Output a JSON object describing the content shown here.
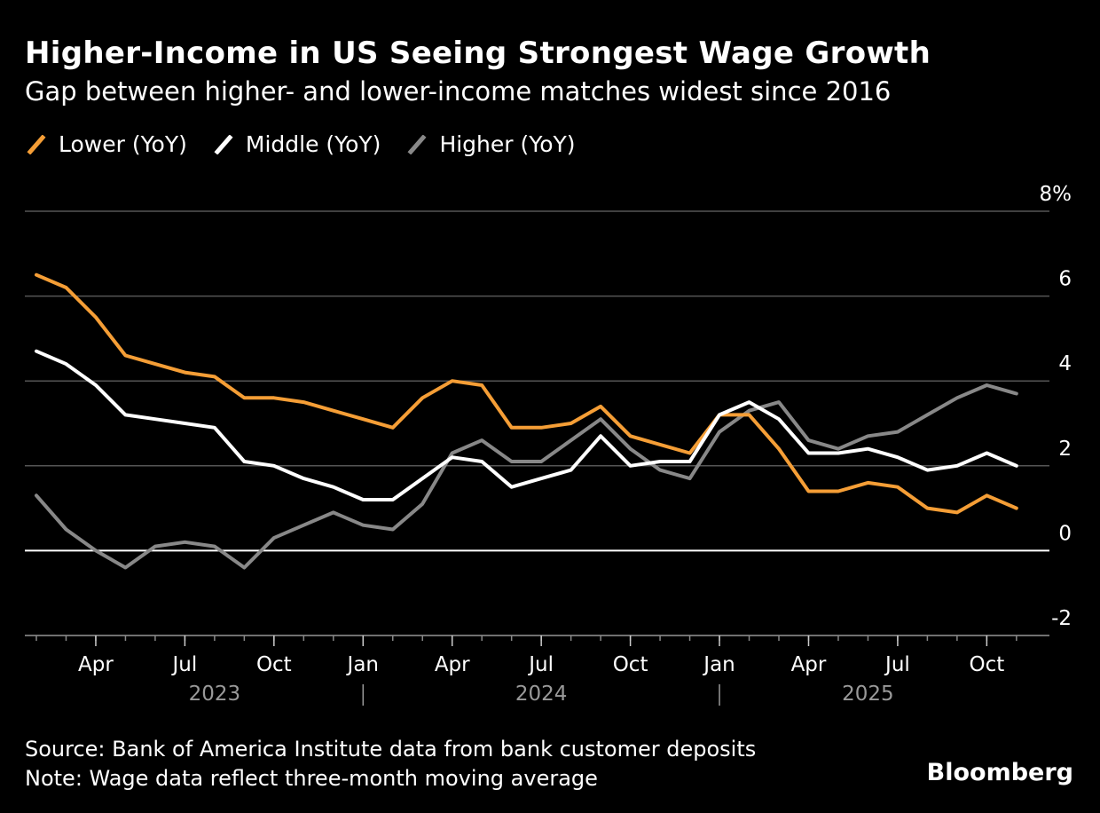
{
  "header": {
    "title": "Higher-Income in US Seeing Strongest Wage Growth",
    "subtitle": "Gap between higher- and lower-income matches widest since 2016"
  },
  "footer": {
    "source": "Source: Bank of America Institute data from bank customer deposits",
    "note": "Note: Wage data reflect three-month moving average",
    "brand": "Bloomberg"
  },
  "chart_data": {
    "type": "line",
    "title": "Higher-Income in US Seeing Strongest Wage Growth",
    "subtitle": "Gap between higher- and lower-income matches widest since 2016",
    "x": [
      "2023-02",
      "2023-03",
      "2023-04",
      "2023-05",
      "2023-06",
      "2023-07",
      "2023-08",
      "2023-09",
      "2023-10",
      "2023-11",
      "2023-12",
      "2024-01",
      "2024-02",
      "2024-03",
      "2024-04",
      "2024-05",
      "2024-06",
      "2024-07",
      "2024-08",
      "2024-09",
      "2024-10",
      "2024-11",
      "2024-12",
      "2025-01",
      "2025-02",
      "2025-03",
      "2025-04",
      "2025-05",
      "2025-06",
      "2025-07",
      "2025-08",
      "2025-09",
      "2025-10",
      "2025-11"
    ],
    "series": [
      {
        "name": "Lower (YoY)",
        "color": "#f59e36",
        "values": [
          6.5,
          6.2,
          5.5,
          4.6,
          4.4,
          4.2,
          4.1,
          3.6,
          3.6,
          3.5,
          3.3,
          3.1,
          2.9,
          3.6,
          4.0,
          3.9,
          2.9,
          2.9,
          3.0,
          3.4,
          2.7,
          2.5,
          2.3,
          3.2,
          3.2,
          2.4,
          1.4,
          1.4,
          1.6,
          1.5,
          1.0,
          0.9,
          1.3,
          1.0
        ]
      },
      {
        "name": "Middle (YoY)",
        "color": "#ffffff",
        "values": [
          4.7,
          4.4,
          3.9,
          3.2,
          3.1,
          3.0,
          2.9,
          2.1,
          2.0,
          1.7,
          1.5,
          1.2,
          1.2,
          1.7,
          2.2,
          2.1,
          1.5,
          1.7,
          1.9,
          2.7,
          2.0,
          2.1,
          2.1,
          3.2,
          3.5,
          3.1,
          2.3,
          2.3,
          2.4,
          2.2,
          1.9,
          2.0,
          2.3,
          2.0
        ]
      },
      {
        "name": "Higher (YoY)",
        "color": "#888888",
        "values": [
          1.3,
          0.5,
          0.0,
          -0.4,
          0.1,
          0.2,
          0.1,
          -0.4,
          0.3,
          0.6,
          0.9,
          0.6,
          0.5,
          1.1,
          2.3,
          2.6,
          2.1,
          2.1,
          2.6,
          3.1,
          2.4,
          1.9,
          1.7,
          2.8,
          3.3,
          3.5,
          2.6,
          2.4,
          2.7,
          2.8,
          3.2,
          3.6,
          3.9,
          3.7
        ]
      }
    ],
    "ylim": [
      -2,
      8
    ],
    "yticks": [
      -2,
      0,
      2,
      4,
      6,
      8
    ],
    "ytick_labels": [
      "-2",
      "0",
      "2",
      "4",
      "6",
      "8%"
    ],
    "xtick_labels": [
      {
        "label": "Apr",
        "date": "2023-04"
      },
      {
        "label": "Jul",
        "date": "2023-07"
      },
      {
        "label": "Oct",
        "date": "2023-10"
      },
      {
        "label": "Jan",
        "date": "2024-01"
      },
      {
        "label": "Apr",
        "date": "2024-04"
      },
      {
        "label": "Jul",
        "date": "2024-07"
      },
      {
        "label": "Oct",
        "date": "2024-10"
      },
      {
        "label": "Jan",
        "date": "2025-01"
      },
      {
        "label": "Apr",
        "date": "2025-04"
      },
      {
        "label": "Jul",
        "date": "2025-07"
      },
      {
        "label": "Oct",
        "date": "2025-10"
      }
    ],
    "year_labels": [
      {
        "label": "2023",
        "date": "2023-08"
      },
      {
        "label": "2024",
        "date": "2024-07"
      },
      {
        "label": "2025",
        "date": "2025-06"
      }
    ],
    "year_separators": [
      "2024-01",
      "2025-01"
    ],
    "legend_position": "top-left",
    "grid": true
  }
}
